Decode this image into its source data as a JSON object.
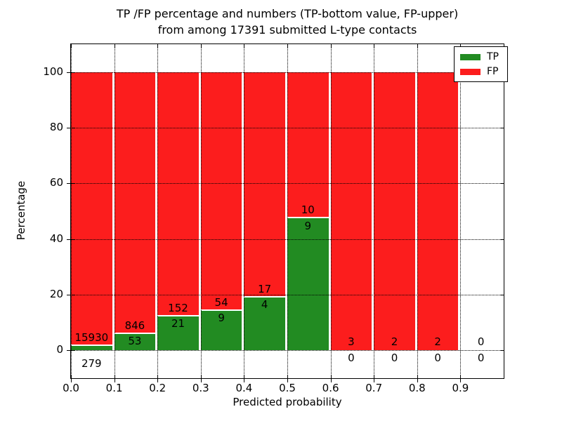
{
  "title": {
    "line1": "TP /FP percentage and numbers (TP-bottom value, FP-upper)",
    "line2": "from among 17391 submitted L-type contacts"
  },
  "axes": {
    "xlabel": "Predicted probability",
    "ylabel": "Percentage",
    "xlim": [
      0.0,
      1.0
    ],
    "ylim": [
      -10,
      110
    ],
    "grid": "dotted",
    "xticks": [
      {
        "value": 0.0,
        "label": "0.0"
      },
      {
        "value": 0.1,
        "label": "0.1"
      },
      {
        "value": 0.2,
        "label": "0.2"
      },
      {
        "value": 0.3,
        "label": "0.3"
      },
      {
        "value": 0.4,
        "label": "0.4"
      },
      {
        "value": 0.5,
        "label": "0.5"
      },
      {
        "value": 0.6,
        "label": "0.6"
      },
      {
        "value": 0.7,
        "label": "0.7"
      },
      {
        "value": 0.8,
        "label": "0.8"
      },
      {
        "value": 0.9,
        "label": "0.9"
      }
    ],
    "yticks": [
      {
        "value": 0,
        "label": "0"
      },
      {
        "value": 20,
        "label": "20"
      },
      {
        "value": 40,
        "label": "40"
      },
      {
        "value": 60,
        "label": "60"
      },
      {
        "value": 80,
        "label": "80"
      },
      {
        "value": 100,
        "label": "100"
      }
    ]
  },
  "colors": {
    "tp": "#228b22",
    "fp": "#fc1d1d",
    "background": "#ffffff",
    "text": "#000000"
  },
  "legend": {
    "position": "upper-right",
    "items": [
      {
        "label": "TP",
        "color": "#228b22"
      },
      {
        "label": "FP",
        "color": "#fc1d1d"
      }
    ]
  },
  "chart_data": {
    "type": "bar",
    "stacked": true,
    "normalized_to": 100,
    "total_contacts": 17391,
    "bin_width": 0.1,
    "bins": [
      {
        "x_start": 0.0,
        "x_end": 0.1,
        "tp_count": 279,
        "fp_count": 15930,
        "tp_pct": 1.72,
        "fp_pct": 98.28
      },
      {
        "x_start": 0.1,
        "x_end": 0.2,
        "tp_count": 53,
        "fp_count": 846,
        "tp_pct": 5.9,
        "fp_pct": 94.1
      },
      {
        "x_start": 0.2,
        "x_end": 0.3,
        "tp_count": 21,
        "fp_count": 152,
        "tp_pct": 12.14,
        "fp_pct": 87.86
      },
      {
        "x_start": 0.3,
        "x_end": 0.4,
        "tp_count": 9,
        "fp_count": 54,
        "tp_pct": 14.29,
        "fp_pct": 85.71
      },
      {
        "x_start": 0.4,
        "x_end": 0.5,
        "tp_count": 4,
        "fp_count": 17,
        "tp_pct": 19.05,
        "fp_pct": 80.95
      },
      {
        "x_start": 0.5,
        "x_end": 0.6,
        "tp_count": 9,
        "fp_count": 10,
        "tp_pct": 47.37,
        "fp_pct": 52.63
      },
      {
        "x_start": 0.6,
        "x_end": 0.7,
        "tp_count": 0,
        "fp_count": 3,
        "tp_pct": 0,
        "fp_pct": 100
      },
      {
        "x_start": 0.7,
        "x_end": 0.8,
        "tp_count": 0,
        "fp_count": 2,
        "tp_pct": 0,
        "fp_pct": 100
      },
      {
        "x_start": 0.8,
        "x_end": 0.9,
        "tp_count": 0,
        "fp_count": 2,
        "tp_pct": 0,
        "fp_pct": 100
      },
      {
        "x_start": 0.9,
        "x_end": 1.0,
        "tp_count": 0,
        "fp_count": 0,
        "tp_pct": 0,
        "fp_pct": 0
      }
    ]
  }
}
